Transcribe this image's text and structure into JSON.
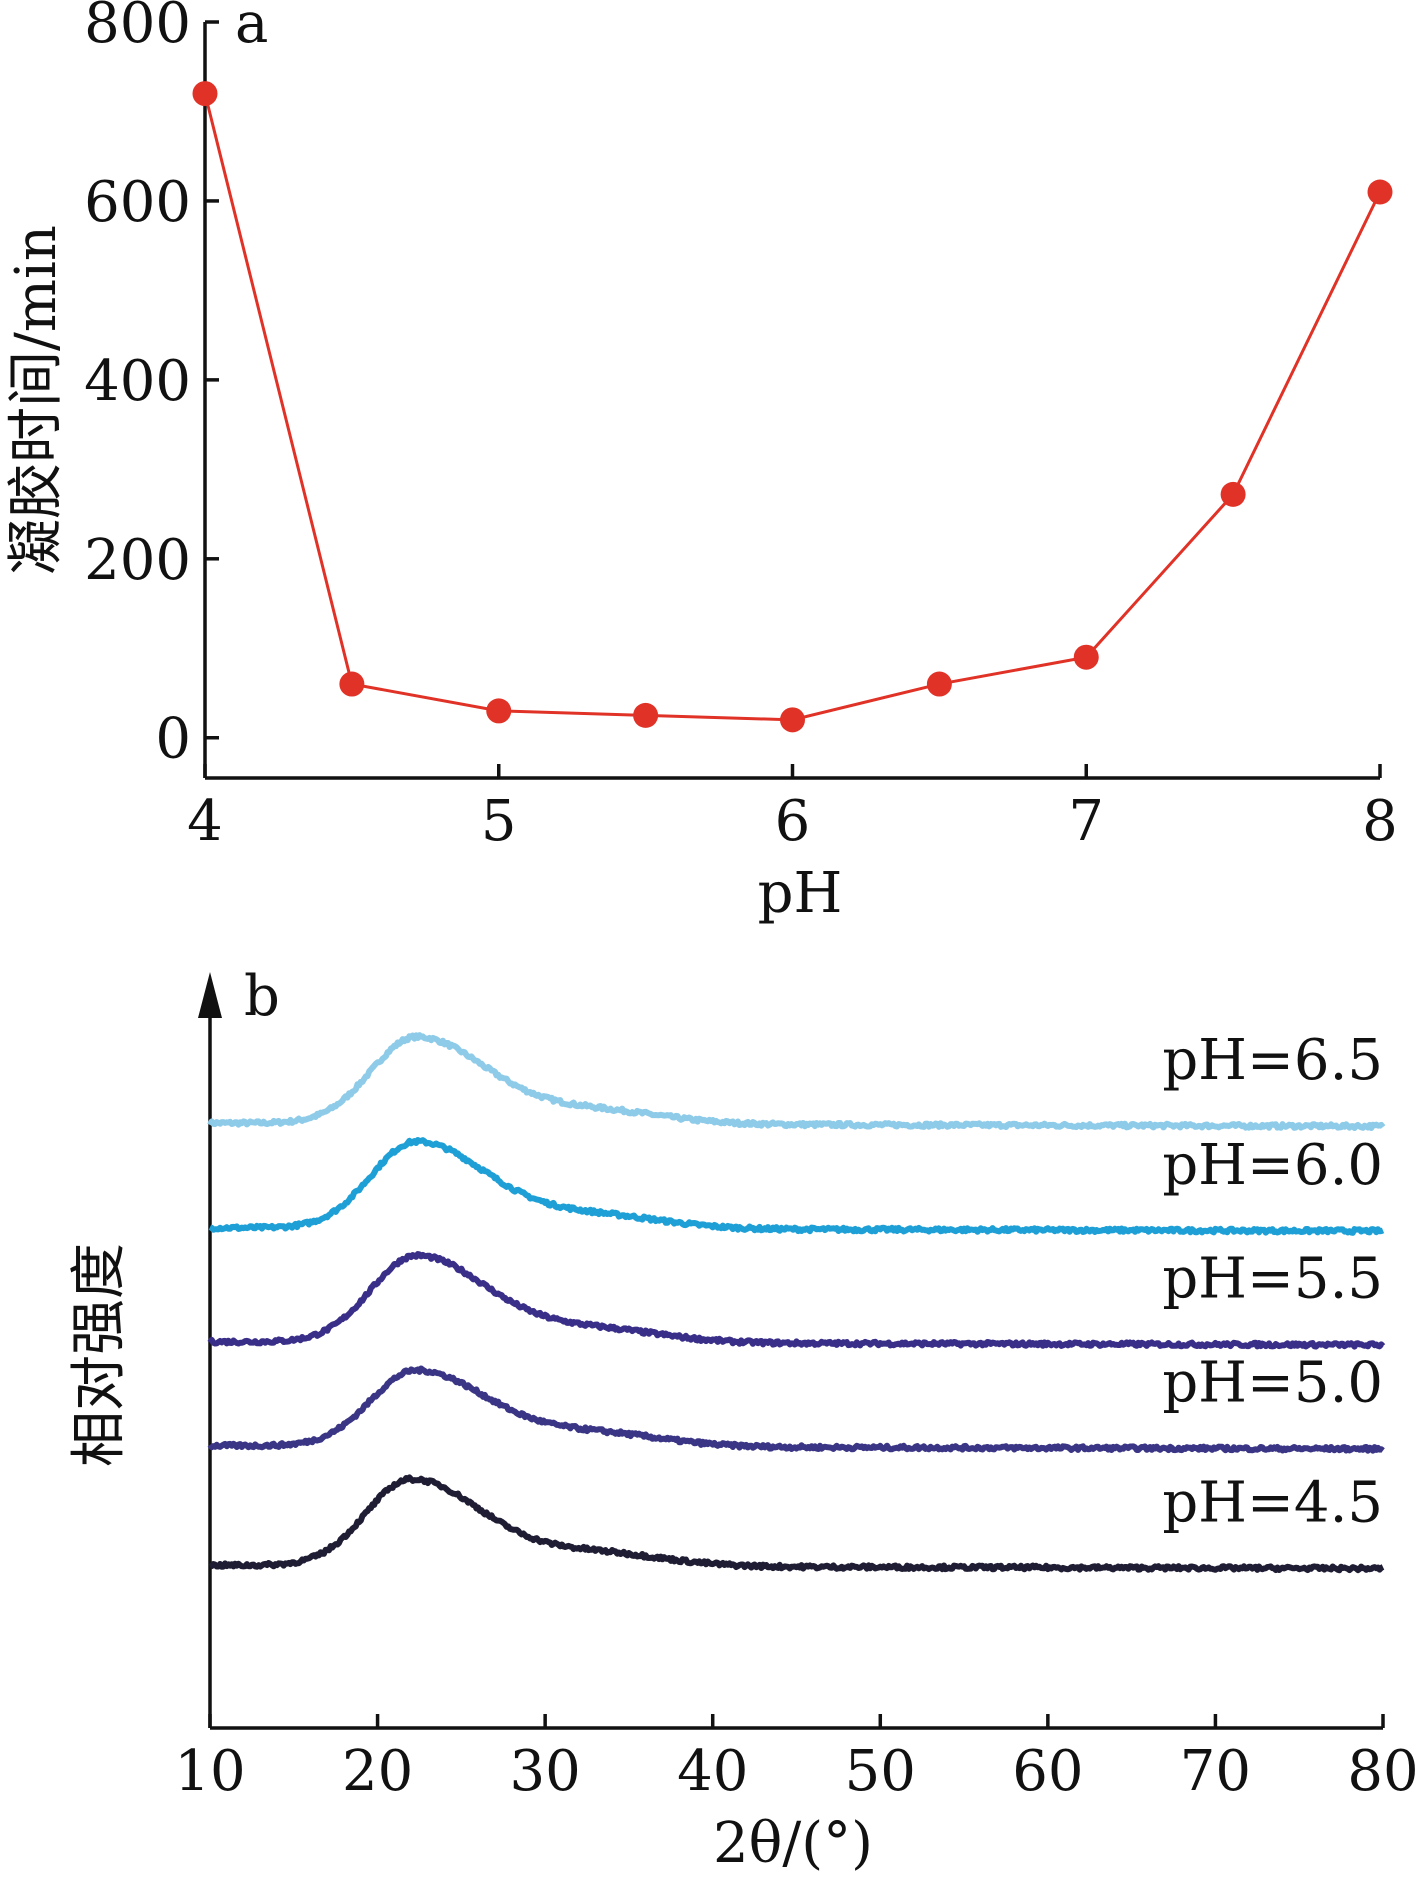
{
  "chart_data": [
    {
      "type": "line",
      "panel_label": "a",
      "xlabel": "pH",
      "ylabel": "凝胶时间/min",
      "xlim": [
        4,
        8
      ],
      "ylim": [
        -45,
        800
      ],
      "x_ticks": [
        "4",
        "5",
        "6",
        "7",
        "8"
      ],
      "y_ticks": [
        "0",
        "200",
        "400",
        "600",
        "800"
      ],
      "grid": false,
      "series": [
        {
          "color": "#e03226",
          "x": [
            4.0,
            4.5,
            5.0,
            5.5,
            6.0,
            6.5,
            7.0,
            7.5,
            8.0
          ],
          "y": [
            720,
            60,
            30,
            25,
            20,
            60,
            90,
            272,
            610
          ]
        }
      ]
    },
    {
      "type": "line",
      "panel_label": "b",
      "xlabel": "2θ/(°)",
      "ylabel": "相对强度",
      "xlim": [
        10,
        80
      ],
      "x_ticks": [
        "10",
        "20",
        "30",
        "40",
        "50",
        "60",
        "70",
        "80"
      ],
      "y_ticks": [],
      "grid": false,
      "y_axis_arrow": true,
      "series": [
        {
          "label": "pH=6.5",
          "color": "#8ecbe8",
          "baseline": 0.0,
          "peak_x": 22.3,
          "peak_height": 0.32
        },
        {
          "label": "pH=6.0",
          "color": "#1ea0d6",
          "baseline": -0.388,
          "peak_x": 22.3,
          "peak_height": 0.32
        },
        {
          "label": "pH=5.5",
          "color": "#3a2f88",
          "baseline": -0.81,
          "peak_x": 22.3,
          "peak_height": 0.32
        },
        {
          "label": "pH=5.0",
          "color": "#3a3584",
          "baseline": -1.195,
          "peak_x": 22.3,
          "peak_height": 0.28
        },
        {
          "label": "pH=4.5",
          "color": "#1f1d33",
          "baseline": -1.638,
          "peak_x": 22.0,
          "peak_height": 0.32
        }
      ]
    }
  ]
}
